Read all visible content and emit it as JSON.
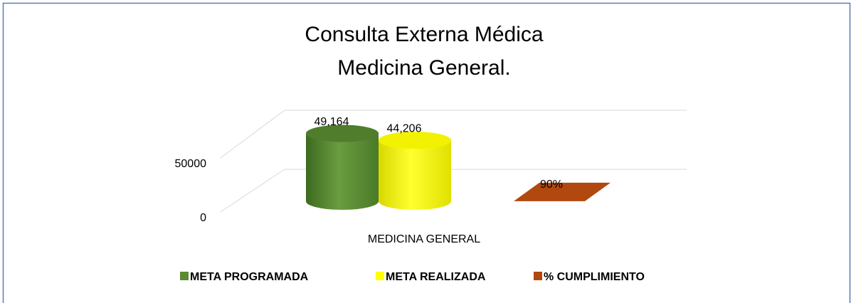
{
  "chart_data": {
    "type": "bar3d",
    "title": [
      "Consulta Externa Médica",
      "Medicina General."
    ],
    "categories": [
      "MEDICINA GENERAL"
    ],
    "series": [
      {
        "name": "META PROGRAMADA",
        "color": "#5b8a32",
        "values": [
          49164
        ],
        "value_labels": [
          "49,164"
        ]
      },
      {
        "name": "META REALIZADA",
        "color": "#ffff00",
        "values": [
          44206
        ],
        "value_labels": [
          "44,206"
        ]
      },
      {
        "name": "% CUMPLIMIENTO",
        "color": "#b0480f",
        "values": [
          90
        ],
        "value_labels": [
          "90%"
        ]
      }
    ],
    "ylim": [
      0,
      50000
    ],
    "yticks": [
      0,
      50000
    ],
    "grid": true,
    "legend": "bottom"
  }
}
